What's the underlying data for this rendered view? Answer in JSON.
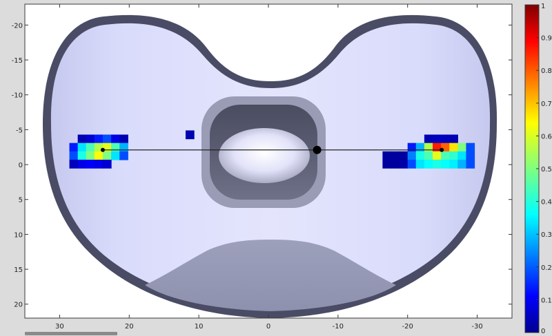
{
  "figure": {
    "background": "#dcdcdc",
    "axes_background": "#ffffff",
    "surface_color": "#d6d8fb"
  },
  "chart_data": [
    {
      "type": "heatmap",
      "title": "",
      "xlabel": "",
      "ylabel": "",
      "xlim": [
        35,
        -35
      ],
      "ylim": [
        -23,
        22
      ],
      "x_reversed": true,
      "y_reversed": true,
      "xticks": [
        30,
        20,
        10,
        0,
        -10,
        -20,
        -30
      ],
      "xtick_labels": [
        "30",
        "20",
        "10",
        "0",
        "-10",
        "-20",
        "-30"
      ],
      "yticks": [
        -20,
        -15,
        -10,
        -5,
        0,
        5,
        10,
        15,
        20
      ],
      "ytick_labels": [
        "-20",
        "-15",
        "-10",
        "-5",
        "0",
        "5",
        "10",
        "15",
        "20"
      ],
      "grid": false,
      "contact_patches": [
        {
          "name": "medial",
          "cells": [
            {
              "x": 26.8,
              "y": -3.7,
              "v": 0.05
            },
            {
              "x": 25.6,
              "y": -3.7,
              "v": 0.08
            },
            {
              "x": 24.4,
              "y": -3.7,
              "v": 0.15
            },
            {
              "x": 23.2,
              "y": -3.7,
              "v": 0.2
            },
            {
              "x": 22.0,
              "y": -3.7,
              "v": 0.1
            },
            {
              "x": 20.8,
              "y": -3.7,
              "v": 0.05
            },
            {
              "x": 28.0,
              "y": -2.5,
              "v": 0.15
            },
            {
              "x": 26.8,
              "y": -2.5,
              "v": 0.35
            },
            {
              "x": 25.6,
              "y": -2.5,
              "v": 0.45
            },
            {
              "x": 24.4,
              "y": -2.5,
              "v": 0.55
            },
            {
              "x": 23.2,
              "y": -2.5,
              "v": 0.6
            },
            {
              "x": 22.0,
              "y": -2.5,
              "v": 0.45
            },
            {
              "x": 20.8,
              "y": -2.5,
              "v": 0.3
            },
            {
              "x": 28.0,
              "y": -1.3,
              "v": 0.2
            },
            {
              "x": 26.8,
              "y": -1.3,
              "v": 0.4
            },
            {
              "x": 25.6,
              "y": -1.3,
              "v": 0.5
            },
            {
              "x": 24.4,
              "y": -1.3,
              "v": 0.62
            },
            {
              "x": 23.2,
              "y": -1.3,
              "v": 0.5
            },
            {
              "x": 22.0,
              "y": -1.3,
              "v": 0.35
            },
            {
              "x": 20.8,
              "y": -1.3,
              "v": 0.2
            },
            {
              "x": 28.0,
              "y": -0.1,
              "v": 0.06
            },
            {
              "x": 26.8,
              "y": -0.1,
              "v": 0.1
            },
            {
              "x": 25.6,
              "y": -0.1,
              "v": 0.12
            },
            {
              "x": 24.4,
              "y": -0.1,
              "v": 0.1
            },
            {
              "x": 23.2,
              "y": -0.1,
              "v": 0.08
            }
          ]
        },
        {
          "name": "lateral",
          "cells": [
            {
              "x": -23.0,
              "y": -3.7,
              "v": 0.05
            },
            {
              "x": -24.2,
              "y": -3.7,
              "v": 0.06
            },
            {
              "x": -25.4,
              "y": -3.7,
              "v": 0.06
            },
            {
              "x": -26.6,
              "y": -3.7,
              "v": 0.05
            },
            {
              "x": -20.6,
              "y": -2.5,
              "v": 0.15
            },
            {
              "x": -21.8,
              "y": -2.5,
              "v": 0.3
            },
            {
              "x": -23.0,
              "y": -2.5,
              "v": 0.55
            },
            {
              "x": -24.2,
              "y": -2.5,
              "v": 0.85
            },
            {
              "x": -25.4,
              "y": -2.5,
              "v": 0.78
            },
            {
              "x": -26.6,
              "y": -2.5,
              "v": 0.65
            },
            {
              "x": -27.8,
              "y": -2.5,
              "v": 0.5
            },
            {
              "x": -29.0,
              "y": -2.5,
              "v": 0.2
            },
            {
              "x": -19.4,
              "y": -1.3,
              "v": 0.03
            },
            {
              "x": -20.6,
              "y": -1.3,
              "v": 0.25
            },
            {
              "x": -21.8,
              "y": -1.3,
              "v": 0.4
            },
            {
              "x": -23.0,
              "y": -1.3,
              "v": 0.45
            },
            {
              "x": -24.2,
              "y": -1.3,
              "v": 0.6
            },
            {
              "x": -25.4,
              "y": -1.3,
              "v": 0.45
            },
            {
              "x": -26.6,
              "y": -1.3,
              "v": 0.42
            },
            {
              "x": -27.8,
              "y": -1.3,
              "v": 0.35
            },
            {
              "x": -29.0,
              "y": -1.3,
              "v": 0.2
            },
            {
              "x": -17.0,
              "y": -1.3,
              "v": 0.03
            },
            {
              "x": -18.2,
              "y": -1.3,
              "v": 0.03
            },
            {
              "x": -17.0,
              "y": -0.1,
              "v": 0.03
            },
            {
              "x": -18.2,
              "y": -0.1,
              "v": 0.03
            },
            {
              "x": -19.4,
              "y": -0.1,
              "v": 0.04
            },
            {
              "x": -20.6,
              "y": -0.1,
              "v": 0.2
            },
            {
              "x": -21.8,
              "y": -0.1,
              "v": 0.35
            },
            {
              "x": -23.0,
              "y": -0.1,
              "v": 0.38
            },
            {
              "x": -24.2,
              "y": -0.1,
              "v": 0.4
            },
            {
              "x": -25.4,
              "y": -0.1,
              "v": 0.38
            },
            {
              "x": -26.6,
              "y": -0.1,
              "v": 0.36
            },
            {
              "x": -27.8,
              "y": -0.1,
              "v": 0.3
            },
            {
              "x": -29.0,
              "y": -0.1,
              "v": 0.2
            }
          ]
        },
        {
          "name": "isolated",
          "cells": [
            {
              "x": 11.3,
              "y": -4.3,
              "v": 0.05
            }
          ]
        }
      ],
      "centers": [
        {
          "x": 23.8,
          "y": -2.1
        },
        {
          "x": -24.9,
          "y": -2.1
        }
      ],
      "midpoint": {
        "x": -7.0,
        "y": -2.1
      },
      "colorbar": {
        "limits": [
          0,
          1
        ],
        "ticks": [
          "0",
          "0.1",
          "0.2",
          "0.3",
          "0.4",
          "0.5",
          "0.6",
          "0.7",
          "0.8",
          "0.9",
          "1"
        ],
        "colormap": "jet",
        "placement": "right"
      }
    }
  ]
}
